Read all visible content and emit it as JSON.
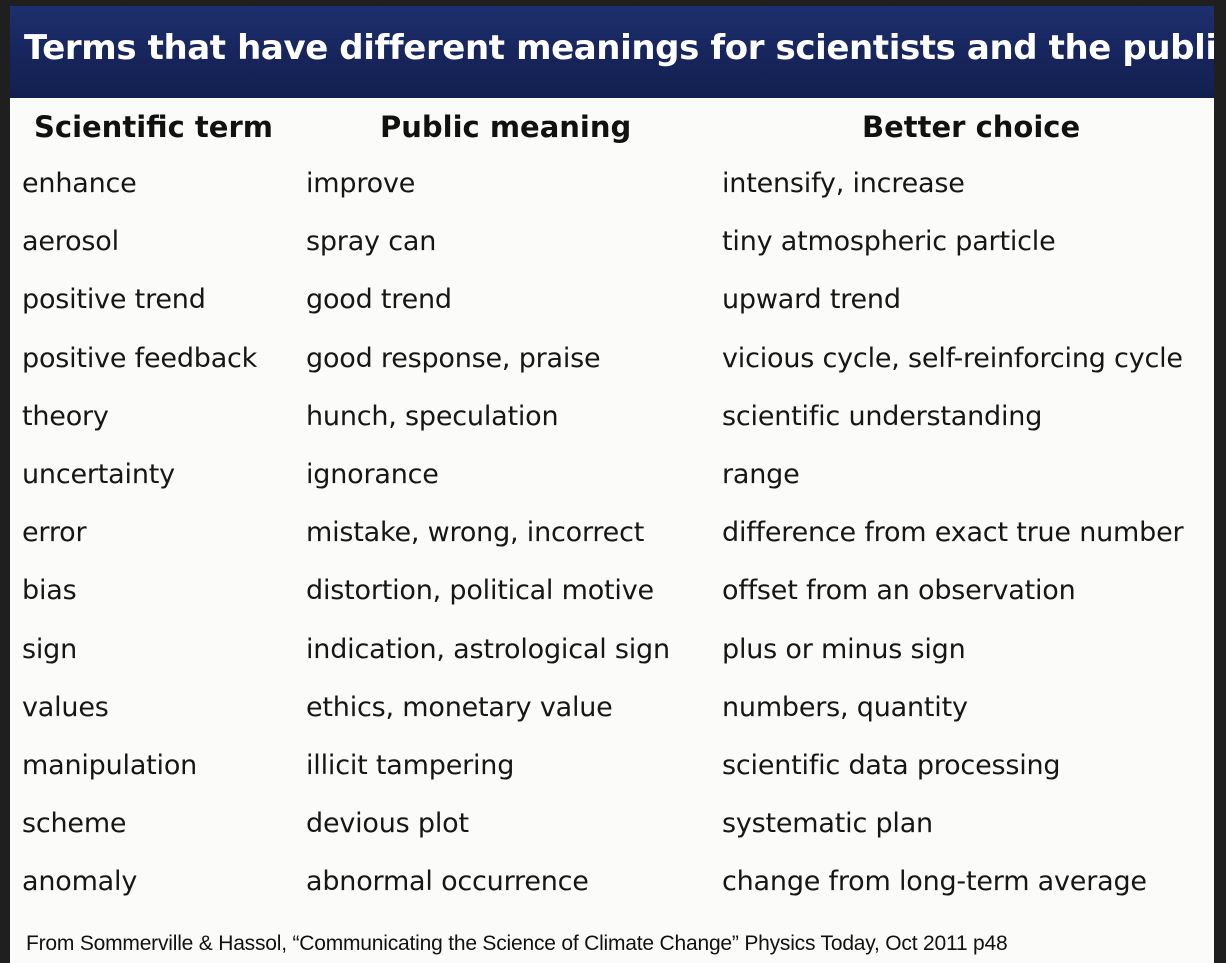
{
  "title": "Terms that have different meanings for scientists and the public",
  "columns": [
    "Scientific term",
    "Public meaning",
    "Better choice"
  ],
  "rows": [
    [
      "enhance",
      "improve",
      "intensify, increase"
    ],
    [
      "aerosol",
      "spray can",
      "tiny atmospheric particle"
    ],
    [
      "positive trend",
      "good trend",
      "upward trend"
    ],
    [
      "positive feedback",
      "good response, praise",
      "vicious cycle, self-reinforcing cycle"
    ],
    [
      "theory",
      "hunch, speculation",
      "scientific understanding"
    ],
    [
      "uncertainty",
      "ignorance",
      "range"
    ],
    [
      "error",
      "mistake, wrong, incorrect",
      "difference from exact true number"
    ],
    [
      "bias",
      "distortion, political motive",
      "offset from an observation"
    ],
    [
      "sign",
      "indication, astrological sign",
      "plus or minus sign"
    ],
    [
      "values",
      "ethics, monetary value",
      "numbers, quantity"
    ],
    [
      "manipulation",
      "illicit tampering",
      "scientific data processing"
    ],
    [
      "scheme",
      "devious plot",
      "systematic plan"
    ],
    [
      "anomaly",
      "abnormal occurrence",
      "change from long-term average"
    ]
  ],
  "source": "From Sommerville & Hassol, “Communicating the Science of Climate Change” Physics Today, Oct 2011 p48",
  "colors": {
    "banner": "#16245a",
    "banner_text": "#ffffff",
    "background": "#fbfbf9",
    "text": "#161616"
  }
}
